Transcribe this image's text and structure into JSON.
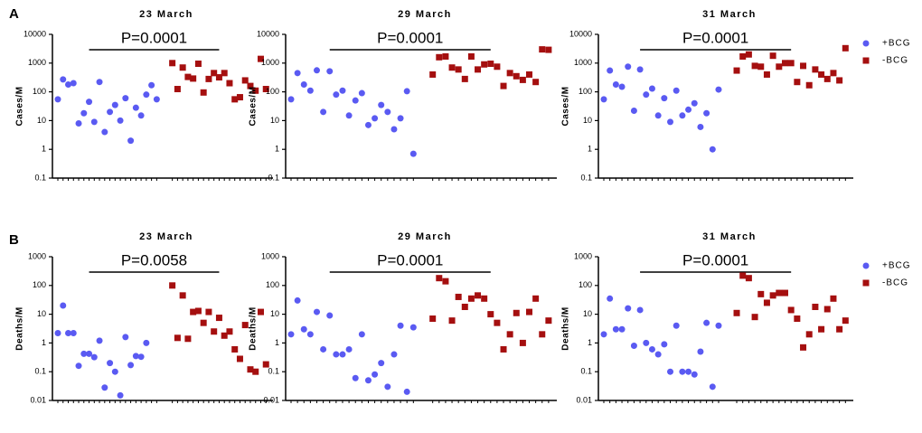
{
  "panels": [
    "A",
    "B"
  ],
  "chart_data": [
    {
      "type": "scatter",
      "title": "23 March",
      "y_label": "Cases/M",
      "annotation": "P=0.0001",
      "log_scale": true,
      "ylim": [
        0.1,
        10000
      ],
      "yticks": [
        0.1,
        1,
        10,
        100,
        1000,
        10000
      ],
      "categories": [
        null,
        null,
        null,
        null,
        null,
        null,
        null,
        null,
        null,
        null,
        null,
        null,
        null,
        null,
        null,
        null,
        null,
        null,
        null,
        null,
        null,
        null,
        null,
        null,
        null,
        null,
        null,
        null,
        null,
        null,
        null,
        null,
        null,
        null,
        null,
        null,
        null,
        null,
        null
      ],
      "series": [
        {
          "name": "+BCG",
          "color": "#5a5af2",
          "values": [
            55,
            270,
            180,
            200,
            8,
            18,
            45,
            9,
            220,
            4,
            20,
            35,
            10,
            60,
            2,
            28,
            15,
            80,
            170,
            55,
            null,
            null,
            null,
            null,
            null,
            null,
            null,
            null,
            null,
            null,
            null,
            null,
            null,
            null,
            null,
            null,
            null,
            null,
            null
          ]
        },
        {
          "name": "-BCG",
          "color": "#a50f0f",
          "values": [
            null,
            null,
            null,
            null,
            null,
            null,
            null,
            null,
            null,
            null,
            null,
            null,
            null,
            null,
            null,
            null,
            null,
            null,
            null,
            null,
            1000,
            125,
            700,
            330,
            290,
            950,
            95,
            280,
            450,
            320,
            450,
            200,
            55,
            65,
            250,
            160,
            110,
            1400,
            125
          ]
        }
      ]
    },
    {
      "type": "scatter",
      "title": "29 March",
      "y_label": "Cases/M",
      "annotation": "P=0.0001",
      "log_scale": true,
      "ylim": [
        0.1,
        10000
      ],
      "yticks": [
        0.1,
        1,
        10,
        100,
        1000,
        10000
      ],
      "categories": [
        null,
        null,
        null,
        null,
        null,
        null,
        null,
        null,
        null,
        null,
        null,
        null,
        null,
        null,
        null,
        null,
        null,
        null,
        null,
        null,
        null,
        null,
        null,
        null,
        null,
        null,
        null,
        null,
        null,
        null,
        null,
        null,
        null,
        null,
        null,
        null,
        null,
        null,
        null
      ],
      "series": [
        {
          "name": "+BCG",
          "color": "#5a5af2",
          "values": [
            55,
            450,
            180,
            110,
            560,
            20,
            520,
            80,
            110,
            15,
            50,
            90,
            7,
            12,
            35,
            20,
            5,
            12,
            105,
            0.7,
            null,
            null,
            null,
            null,
            null,
            null,
            null,
            null,
            null,
            null,
            null,
            null,
            null,
            null,
            null,
            null,
            null,
            null,
            null
          ]
        },
        {
          "name": "-BCG",
          "color": "#a50f0f",
          "values": [
            null,
            null,
            null,
            null,
            null,
            null,
            null,
            null,
            null,
            null,
            null,
            null,
            null,
            null,
            null,
            null,
            null,
            null,
            null,
            null,
            400,
            1600,
            1700,
            700,
            600,
            280,
            1700,
            600,
            900,
            950,
            750,
            160,
            450,
            350,
            260,
            400,
            220,
            3000,
            2900
          ]
        }
      ]
    },
    {
      "type": "scatter",
      "title": "31 March",
      "y_label": "Cases/M",
      "annotation": "P=0.0001",
      "log_scale": true,
      "legend": "right",
      "ylim": [
        0.1,
        10000
      ],
      "yticks": [
        0.1,
        1,
        10,
        100,
        1000,
        10000
      ],
      "categories": [
        null,
        null,
        null,
        null,
        null,
        null,
        null,
        null,
        null,
        null,
        null,
        null,
        null,
        null,
        null,
        null,
        null,
        null,
        null,
        null,
        null,
        null,
        null,
        null,
        null,
        null,
        null,
        null,
        null,
        null,
        null,
        null,
        null,
        null,
        null,
        null,
        null,
        null,
        null
      ],
      "series": [
        {
          "name": "+BCG",
          "color": "#5a5af2",
          "values": [
            55,
            550,
            180,
            150,
            750,
            22,
            600,
            80,
            130,
            15,
            60,
            9,
            110,
            15,
            24,
            40,
            6,
            18,
            1,
            120,
            null,
            null,
            null,
            null,
            null,
            null,
            null,
            null,
            null,
            null,
            null,
            null,
            null,
            null,
            null,
            null,
            null,
            null,
            null
          ]
        },
        {
          "name": "-BCG",
          "color": "#a50f0f",
          "values": [
            null,
            null,
            null,
            null,
            null,
            null,
            null,
            null,
            null,
            null,
            null,
            null,
            null,
            null,
            null,
            null,
            null,
            null,
            null,
            null,
            550,
            1700,
            2000,
            800,
            750,
            400,
            1800,
            750,
            1000,
            1000,
            220,
            800,
            170,
            600,
            400,
            280,
            450,
            250,
            3300
          ]
        }
      ]
    },
    {
      "type": "scatter",
      "title": "23 March",
      "y_label": "Deaths/M",
      "annotation": "P=0.0058",
      "log_scale": true,
      "ylim": [
        0.01,
        1000
      ],
      "yticks": [
        0.01,
        0.1,
        1,
        10,
        100,
        1000
      ],
      "categories": [
        null,
        null,
        null,
        null,
        null,
        null,
        null,
        null,
        null,
        null,
        null,
        null,
        null,
        null,
        null,
        null,
        null,
        null,
        null,
        null,
        null,
        null,
        null,
        null,
        null,
        null,
        null,
        null,
        null,
        null,
        null,
        null,
        null,
        null,
        null,
        null,
        null,
        null,
        null
      ],
      "series": [
        {
          "name": "+BCG",
          "color": "#5a5af2",
          "values": [
            2.2,
            20,
            2.2,
            2.2,
            0.16,
            0.42,
            0.42,
            0.32,
            1.2,
            0.028,
            0.2,
            0.1,
            0.015,
            1.6,
            0.17,
            0.35,
            0.33,
            1.0,
            null,
            null,
            null,
            null,
            null,
            null,
            null,
            null,
            null,
            null,
            null,
            null,
            null,
            null,
            null,
            null,
            null,
            null,
            null,
            null,
            null
          ]
        },
        {
          "name": "-BCG",
          "color": "#a50f0f",
          "values": [
            null,
            null,
            null,
            null,
            null,
            null,
            null,
            null,
            null,
            null,
            null,
            null,
            null,
            null,
            null,
            null,
            null,
            null,
            null,
            null,
            100,
            1.5,
            45,
            1.4,
            12,
            13,
            5,
            12,
            2.5,
            7.5,
            1.8,
            2.5,
            0.6,
            0.28,
            4.2,
            0.12,
            0.1,
            12,
            0.18
          ]
        }
      ]
    },
    {
      "type": "scatter",
      "title": "29 March",
      "y_label": "Deaths/M",
      "annotation": "P=0.0001",
      "log_scale": true,
      "ylim": [
        0.01,
        1000
      ],
      "yticks": [
        0.01,
        0.1,
        1,
        10,
        100,
        1000
      ],
      "categories": [
        null,
        null,
        null,
        null,
        null,
        null,
        null,
        null,
        null,
        null,
        null,
        null,
        null,
        null,
        null,
        null,
        null,
        null,
        null,
        null,
        null,
        null,
        null,
        null,
        null,
        null,
        null,
        null,
        null,
        null,
        null,
        null,
        null,
        null,
        null,
        null,
        null,
        null,
        null
      ],
      "series": [
        {
          "name": "+BCG",
          "color": "#5a5af2",
          "values": [
            2,
            30,
            3,
            2,
            12,
            0.6,
            9,
            0.4,
            0.4,
            0.6,
            0.06,
            2,
            0.05,
            0.08,
            0.2,
            0.03,
            0.4,
            4,
            0.02,
            3.5,
            null,
            null,
            null,
            null,
            null,
            null,
            null,
            null,
            null,
            null,
            null,
            null,
            null,
            null,
            null,
            null,
            null,
            null,
            null
          ]
        },
        {
          "name": "-BCG",
          "color": "#a50f0f",
          "values": [
            null,
            null,
            null,
            null,
            null,
            null,
            null,
            null,
            null,
            null,
            null,
            null,
            null,
            null,
            null,
            null,
            null,
            null,
            null,
            null,
            7,
            180,
            140,
            6,
            40,
            18,
            35,
            45,
            35,
            10,
            5,
            0.6,
            2,
            11,
            1,
            12,
            35,
            2,
            6
          ]
        }
      ]
    },
    {
      "type": "scatter",
      "title": "31 March",
      "y_label": "Deaths/M",
      "annotation": "P=0.0001",
      "log_scale": true,
      "legend": "right",
      "ylim": [
        0.01,
        1000
      ],
      "yticks": [
        0.01,
        0.1,
        1,
        10,
        100,
        1000
      ],
      "categories": [
        null,
        null,
        null,
        null,
        null,
        null,
        null,
        null,
        null,
        null,
        null,
        null,
        null,
        null,
        null,
        null,
        null,
        null,
        null,
        null,
        null,
        null,
        null,
        null,
        null,
        null,
        null,
        null,
        null,
        null,
        null,
        null,
        null,
        null,
        null,
        null,
        null,
        null,
        null
      ],
      "series": [
        {
          "name": "+BCG",
          "color": "#5a5af2",
          "values": [
            2,
            35,
            3,
            3,
            16,
            0.8,
            14,
            1,
            0.6,
            0.4,
            0.9,
            0.1,
            4,
            0.1,
            0.1,
            0.08,
            0.5,
            5,
            0.03,
            4,
            null,
            null,
            null,
            null,
            null,
            null,
            null,
            null,
            null,
            null,
            null,
            null,
            null,
            null,
            null,
            null,
            null,
            null,
            null
          ]
        },
        {
          "name": "-BCG",
          "color": "#a50f0f",
          "values": [
            null,
            null,
            null,
            null,
            null,
            null,
            null,
            null,
            null,
            null,
            null,
            null,
            null,
            null,
            null,
            null,
            null,
            null,
            null,
            null,
            11,
            220,
            180,
            8,
            50,
            25,
            45,
            55,
            55,
            14,
            7,
            0.7,
            2,
            18,
            3,
            15,
            35,
            3,
            6
          ]
        }
      ]
    }
  ]
}
